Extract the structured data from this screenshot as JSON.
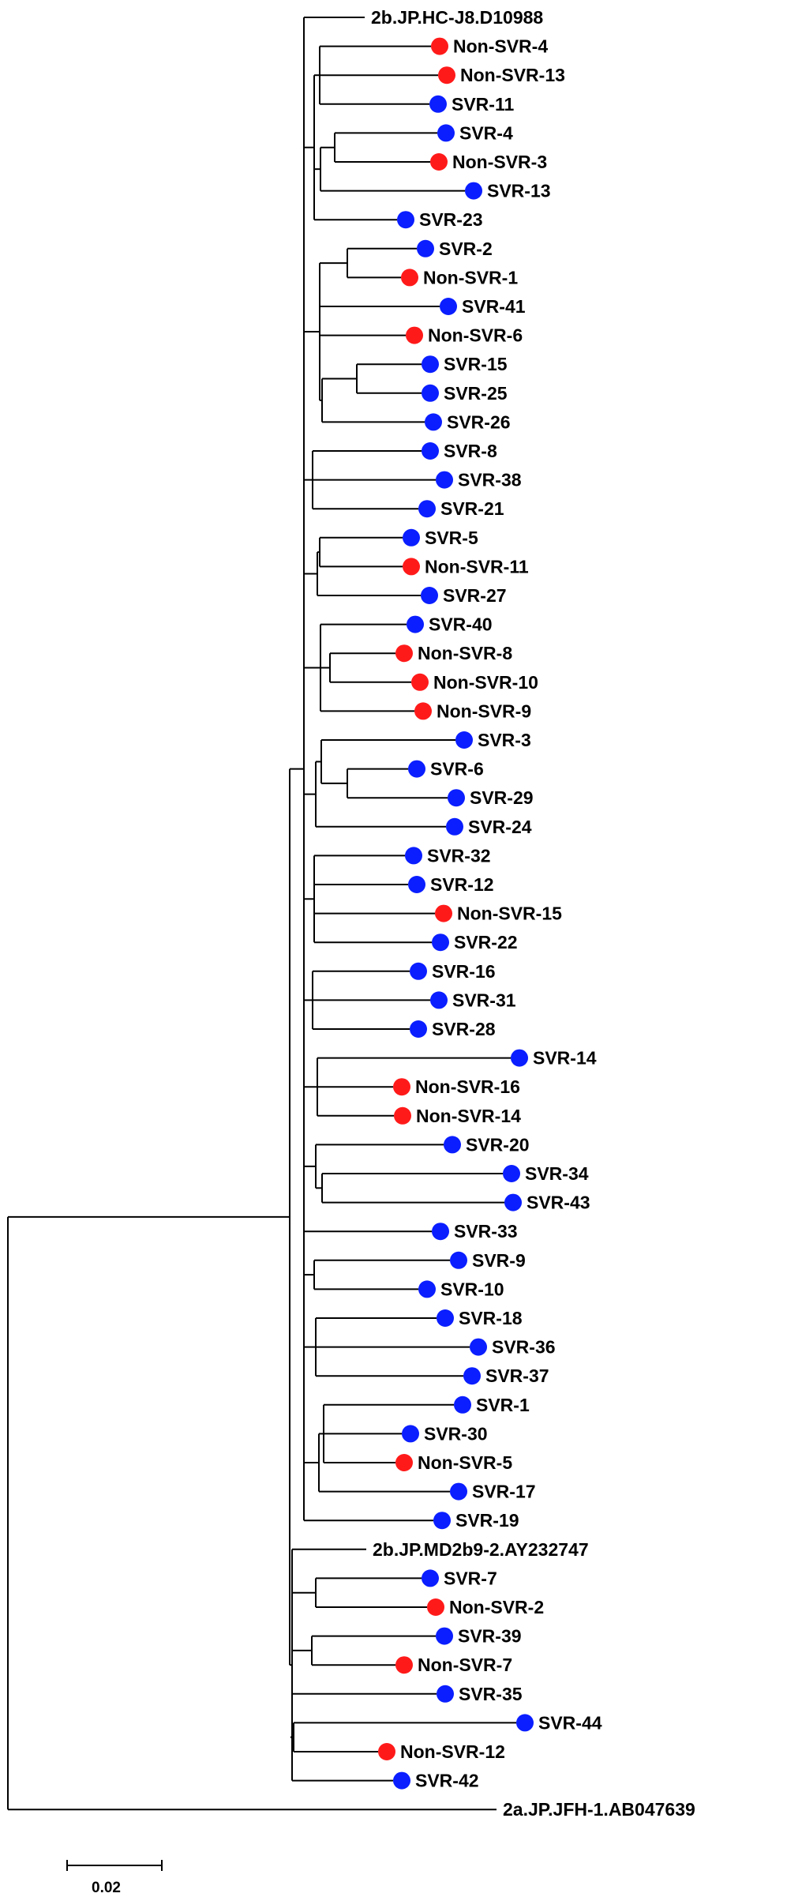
{
  "tree": {
    "colors": {
      "svr": "#0a1eff",
      "non_svr": "#ff1a1a",
      "branch": "#000000"
    },
    "marker_legend": {
      "blue": "SVR",
      "red": "Non-SVR"
    },
    "leaves": [
      {
        "label": "2b.JP.HC-J8.D10988",
        "group": "reference"
      },
      {
        "label": "Non-SVR-4",
        "group": "non_svr"
      },
      {
        "label": "Non-SVR-13",
        "group": "non_svr"
      },
      {
        "label": "SVR-11",
        "group": "svr"
      },
      {
        "label": "SVR-4",
        "group": "svr"
      },
      {
        "label": "Non-SVR-3",
        "group": "non_svr"
      },
      {
        "label": "SVR-13",
        "group": "svr"
      },
      {
        "label": "SVR-23",
        "group": "svr"
      },
      {
        "label": "SVR-2",
        "group": "svr"
      },
      {
        "label": "Non-SVR-1",
        "group": "non_svr"
      },
      {
        "label": "SVR-41",
        "group": "svr"
      },
      {
        "label": "Non-SVR-6",
        "group": "non_svr"
      },
      {
        "label": "SVR-15",
        "group": "svr"
      },
      {
        "label": "SVR-25",
        "group": "svr"
      },
      {
        "label": "SVR-26",
        "group": "svr"
      },
      {
        "label": "SVR-8",
        "group": "svr"
      },
      {
        "label": "SVR-38",
        "group": "svr"
      },
      {
        "label": "SVR-21",
        "group": "svr"
      },
      {
        "label": "SVR-5",
        "group": "svr"
      },
      {
        "label": "Non-SVR-11",
        "group": "non_svr"
      },
      {
        "label": "SVR-27",
        "group": "svr"
      },
      {
        "label": "SVR-40",
        "group": "svr"
      },
      {
        "label": "Non-SVR-8",
        "group": "non_svr"
      },
      {
        "label": "Non-SVR-10",
        "group": "non_svr"
      },
      {
        "label": "Non-SVR-9",
        "group": "non_svr"
      },
      {
        "label": "SVR-3",
        "group": "svr"
      },
      {
        "label": "SVR-6",
        "group": "svr"
      },
      {
        "label": "SVR-29",
        "group": "svr"
      },
      {
        "label": "SVR-24",
        "group": "svr"
      },
      {
        "label": "SVR-32",
        "group": "svr"
      },
      {
        "label": "SVR-12",
        "group": "svr"
      },
      {
        "label": "Non-SVR-15",
        "group": "non_svr"
      },
      {
        "label": "SVR-22",
        "group": "svr"
      },
      {
        "label": "SVR-16",
        "group": "svr"
      },
      {
        "label": "SVR-31",
        "group": "svr"
      },
      {
        "label": "SVR-28",
        "group": "svr"
      },
      {
        "label": "SVR-14",
        "group": "svr"
      },
      {
        "label": "Non-SVR-16",
        "group": "non_svr"
      },
      {
        "label": "Non-SVR-14",
        "group": "non_svr"
      },
      {
        "label": "SVR-20",
        "group": "svr"
      },
      {
        "label": "SVR-34",
        "group": "svr"
      },
      {
        "label": "SVR-43",
        "group": "svr"
      },
      {
        "label": "SVR-33",
        "group": "svr"
      },
      {
        "label": "SVR-9",
        "group": "svr"
      },
      {
        "label": "SVR-10",
        "group": "svr"
      },
      {
        "label": "SVR-18",
        "group": "svr"
      },
      {
        "label": "SVR-36",
        "group": "svr"
      },
      {
        "label": "SVR-37",
        "group": "svr"
      },
      {
        "label": "SVR-1",
        "group": "svr"
      },
      {
        "label": "SVR-30",
        "group": "svr"
      },
      {
        "label": "Non-SVR-5",
        "group": "non_svr"
      },
      {
        "label": "SVR-17",
        "group": "svr"
      },
      {
        "label": "SVR-19",
        "group": "svr"
      },
      {
        "label": "2b.JP.MD2b9-2.AY232747",
        "group": "reference"
      },
      {
        "label": "SVR-7",
        "group": "svr"
      },
      {
        "label": "Non-SVR-2",
        "group": "non_svr"
      },
      {
        "label": "SVR-39",
        "group": "svr"
      },
      {
        "label": "Non-SVR-7",
        "group": "non_svr"
      },
      {
        "label": "SVR-35",
        "group": "svr"
      },
      {
        "label": "SVR-44",
        "group": "svr"
      },
      {
        "label": "Non-SVR-12",
        "group": "non_svr"
      },
      {
        "label": "SVR-42",
        "group": "svr"
      },
      {
        "label": "2a.JP.JFH-1.AB047639",
        "group": "reference"
      }
    ],
    "scale_bar": {
      "label": "0.02",
      "value": 0.02
    }
  }
}
